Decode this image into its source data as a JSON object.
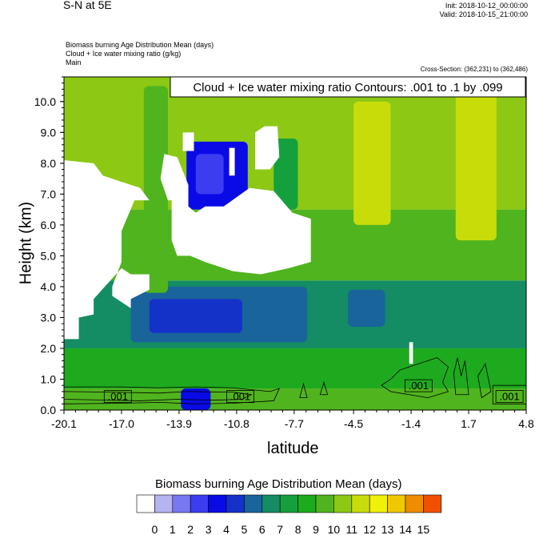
{
  "header": {
    "title": "S-N at 5E",
    "init": "Init: 2018-10-12_00:00:00",
    "valid": "Valid: 2018-10-15_21:00:00",
    "fields": [
      "Biomass burning Age Distribution Mean   (days)",
      "Cloud + Ice water mixing ratio   (g/kg)",
      "Main"
    ],
    "cross_section": "Cross-Section: (362,231) to (362,486)"
  },
  "chart_data": {
    "type": "heatmap",
    "contour_label": "Cloud + Ice water mixing ratio Contours: .001 to .1 by .099",
    "xlabel": "latitude",
    "ylabel": "Height (km)",
    "xlim": [
      -20.1,
      4.8
    ],
    "ylim": [
      0,
      10.8
    ],
    "x_ticks": [
      "-20.1",
      "-17.0",
      "-13.9",
      "-10.8",
      "-7.7",
      "-4.5",
      "-1.4",
      "1.7",
      "4.8"
    ],
    "y_ticks": [
      "0.0",
      "1.0",
      "2.0",
      "3.0",
      "4.0",
      "5.0",
      "6.0",
      "7.0",
      "8.0",
      "9.0",
      "10.0"
    ],
    "contour_value_labels": [
      {
        "text": ".001",
        "x": -17.2,
        "y": 0.4
      },
      {
        "text": ".001",
        "x": -10.6,
        "y": 0.4
      },
      {
        "text": ".001",
        "x": -1.0,
        "y": 0.75
      },
      {
        "text": ".001",
        "x": 3.9,
        "y": 0.4
      }
    ],
    "colorbar": {
      "title": "Biomass burning Age Distribution Mean  (days)",
      "labels": [
        "0",
        "1",
        "2",
        "3",
        "4",
        "5",
        "6",
        "7",
        "8",
        "9",
        "10",
        "11",
        "12",
        "13",
        "14",
        "15"
      ],
      "colors": [
        "#ffffff",
        "#b4b4f0",
        "#7878f0",
        "#3c3cf0",
        "#0a0ae6",
        "#1432c8",
        "#19649b",
        "#148c64",
        "#14a03c",
        "#1eaa1e",
        "#50b41e",
        "#8cc814",
        "#c8dc0a",
        "#f0f00a",
        "#f0c800",
        "#f08c00",
        "#f05000",
        "#f01400"
      ]
    },
    "field_bands": [
      {
        "z0": 0,
        "z1": 0.7,
        "value": 9
      },
      {
        "z0": 0.7,
        "z1": 2.0,
        "value": 8
      },
      {
        "z0": 2.0,
        "z1": 4.2,
        "value": 6
      },
      {
        "z0": 4.2,
        "z1": 6.5,
        "value": 9
      },
      {
        "z0": 6.5,
        "z1": 10.8,
        "value": 10
      }
    ],
    "field_patches": [
      {
        "x0": -16.5,
        "x1": -7.0,
        "y0": 2.2,
        "y1": 4.0,
        "value": 5
      },
      {
        "x0": -15.5,
        "x1": -10.5,
        "y0": 2.5,
        "y1": 3.6,
        "value": 4
      },
      {
        "x0": -4.8,
        "x1": -2.8,
        "y0": 2.7,
        "y1": 3.9,
        "value": 5
      },
      {
        "x0": -13.5,
        "x1": -10.2,
        "y0": 6.5,
        "y1": 8.7,
        "value": 3
      },
      {
        "x0": -13.0,
        "x1": -11.5,
        "y0": 7.0,
        "y1": 8.3,
        "value": 2
      },
      {
        "x0": -13.8,
        "x1": -12.2,
        "y0": 0.0,
        "y1": 0.7,
        "value": 3
      },
      {
        "x0": -8.8,
        "x1": -7.5,
        "y0": 6.5,
        "y1": 8.8,
        "value": 7
      },
      {
        "x0": -20.1,
        "x1": -18.5,
        "y0": 4.0,
        "y1": 8.0,
        "value": 11
      },
      {
        "x0": -4.5,
        "x1": -2.5,
        "y0": 6.0,
        "y1": 10.0,
        "value": 11
      },
      {
        "x0": 1.0,
        "x1": 3.2,
        "y0": 5.5,
        "y1": 10.8,
        "value": 11
      },
      {
        "x0": -15.8,
        "x1": -14.5,
        "y0": 3.8,
        "y1": 10.5,
        "value": 9
      }
    ],
    "white_regions": [
      [
        [
          -20.1,
          8.1
        ],
        [
          -18.5,
          8.0
        ],
        [
          -18.0,
          7.6
        ],
        [
          -17.0,
          7.4
        ],
        [
          -16.0,
          7.2
        ],
        [
          -15.5,
          6.8
        ],
        [
          -14.3,
          6.8
        ],
        [
          -14.3,
          5.5
        ],
        [
          -14.0,
          5.0
        ],
        [
          -13.3,
          5.0
        ],
        [
          -12.5,
          4.8
        ],
        [
          -11.0,
          4.5
        ],
        [
          -9.5,
          4.4
        ],
        [
          -8.0,
          4.6
        ],
        [
          -6.8,
          4.8
        ],
        [
          -6.8,
          6.2
        ],
        [
          -7.8,
          6.4
        ],
        [
          -8.8,
          7.1
        ],
        [
          -10.1,
          7.2
        ],
        [
          -11.5,
          6.6
        ],
        [
          -12.5,
          6.6
        ],
        [
          -13.0,
          6.4
        ],
        [
          -13.4,
          6.6
        ],
        [
          -13.4,
          7.3
        ],
        [
          -14.0,
          8.2
        ],
        [
          -14.7,
          8.3
        ],
        [
          -14.9,
          7.5
        ],
        [
          -14.5,
          6.8
        ],
        [
          -15.5,
          6.8
        ],
        [
          -16.3,
          6.8
        ],
        [
          -17.0,
          5.8
        ],
        [
          -17.0,
          4.8
        ],
        [
          -17.5,
          4.0
        ],
        [
          -17.5,
          3.7
        ],
        [
          -16.5,
          3.3
        ],
        [
          -16.5,
          3.6
        ],
        [
          -15.5,
          3.9
        ],
        [
          -15.5,
          4.4
        ],
        [
          -16.5,
          4.4
        ],
        [
          -17.0,
          4.6
        ],
        [
          -18.5,
          3.6
        ],
        [
          -18.5,
          3.1
        ],
        [
          -19.3,
          3.0
        ],
        [
          -19.3,
          2.3
        ],
        [
          -20.1,
          2.3
        ]
      ],
      [
        [
          -9.8,
          9.0
        ],
        [
          -9.3,
          9.2
        ],
        [
          -8.6,
          9.2
        ],
        [
          -8.5,
          8.2
        ],
        [
          -9.0,
          7.8
        ],
        [
          -9.8,
          7.8
        ]
      ],
      [
        [
          -13.7,
          9.0
        ],
        [
          -13.1,
          9.0
        ],
        [
          -13.1,
          8.4
        ],
        [
          -13.7,
          8.4
        ]
      ],
      [
        [
          -11.2,
          8.5
        ],
        [
          -10.9,
          8.5
        ],
        [
          -10.9,
          7.6
        ],
        [
          -11.2,
          7.6
        ]
      ],
      [
        [
          -1.5,
          2.2
        ],
        [
          -1.3,
          2.2
        ],
        [
          -1.3,
          1.5
        ],
        [
          -1.5,
          1.5
        ]
      ]
    ],
    "contours": [
      [
        [
          -20.1,
          0.75
        ],
        [
          -17.0,
          0.75
        ],
        [
          -15.0,
          0.72
        ],
        [
          -13.0,
          0.75
        ],
        [
          -11.0,
          0.72
        ],
        [
          -9.0,
          0.6
        ],
        [
          -8.5,
          0.7
        ],
        [
          -8.8,
          0.3
        ],
        [
          -11.0,
          0.22
        ],
        [
          -13.0,
          0.2
        ],
        [
          -15.0,
          0.25
        ],
        [
          -17.0,
          0.22
        ],
        [
          -20.1,
          0.2
        ]
      ],
      [
        [
          -20.1,
          0.6
        ],
        [
          -17.5,
          0.58
        ],
        [
          -15.0,
          0.55
        ],
        [
          -13.5,
          0.6
        ],
        [
          -11.0,
          0.58
        ],
        [
          -10.0,
          0.5
        ],
        [
          -10.5,
          0.35
        ],
        [
          -12.0,
          0.32
        ],
        [
          -14.0,
          0.35
        ],
        [
          -16.0,
          0.3
        ],
        [
          -20.1,
          0.35
        ]
      ],
      [
        [
          -7.4,
          0.4
        ],
        [
          -7.2,
          0.85
        ],
        [
          -7.0,
          0.4
        ]
      ],
      [
        [
          -6.3,
          0.5
        ],
        [
          -6.1,
          0.9
        ],
        [
          -5.9,
          0.5
        ]
      ],
      [
        [
          -2.5,
          1.0
        ],
        [
          -2.0,
          1.3
        ],
        [
          -1.0,
          1.5
        ],
        [
          0.0,
          1.7
        ],
        [
          0.6,
          1.4
        ],
        [
          0.3,
          0.9
        ],
        [
          0.6,
          0.6
        ],
        [
          -0.5,
          0.4
        ],
        [
          -1.5,
          0.5
        ],
        [
          -2.5,
          0.6
        ],
        [
          -3.0,
          0.8
        ]
      ],
      [
        [
          0.9,
          1.2
        ],
        [
          1.1,
          1.7
        ],
        [
          1.3,
          1.1
        ],
        [
          1.5,
          1.6
        ],
        [
          1.7,
          0.5
        ],
        [
          1.0,
          0.5
        ]
      ],
      [
        [
          2.2,
          1.1
        ],
        [
          2.6,
          1.5
        ],
        [
          2.9,
          0.6
        ],
        [
          2.4,
          0.4
        ]
      ],
      [
        [
          3.0,
          0.8
        ],
        [
          4.8,
          0.8
        ],
        [
          4.8,
          0.2
        ],
        [
          3.0,
          0.2
        ]
      ]
    ]
  }
}
